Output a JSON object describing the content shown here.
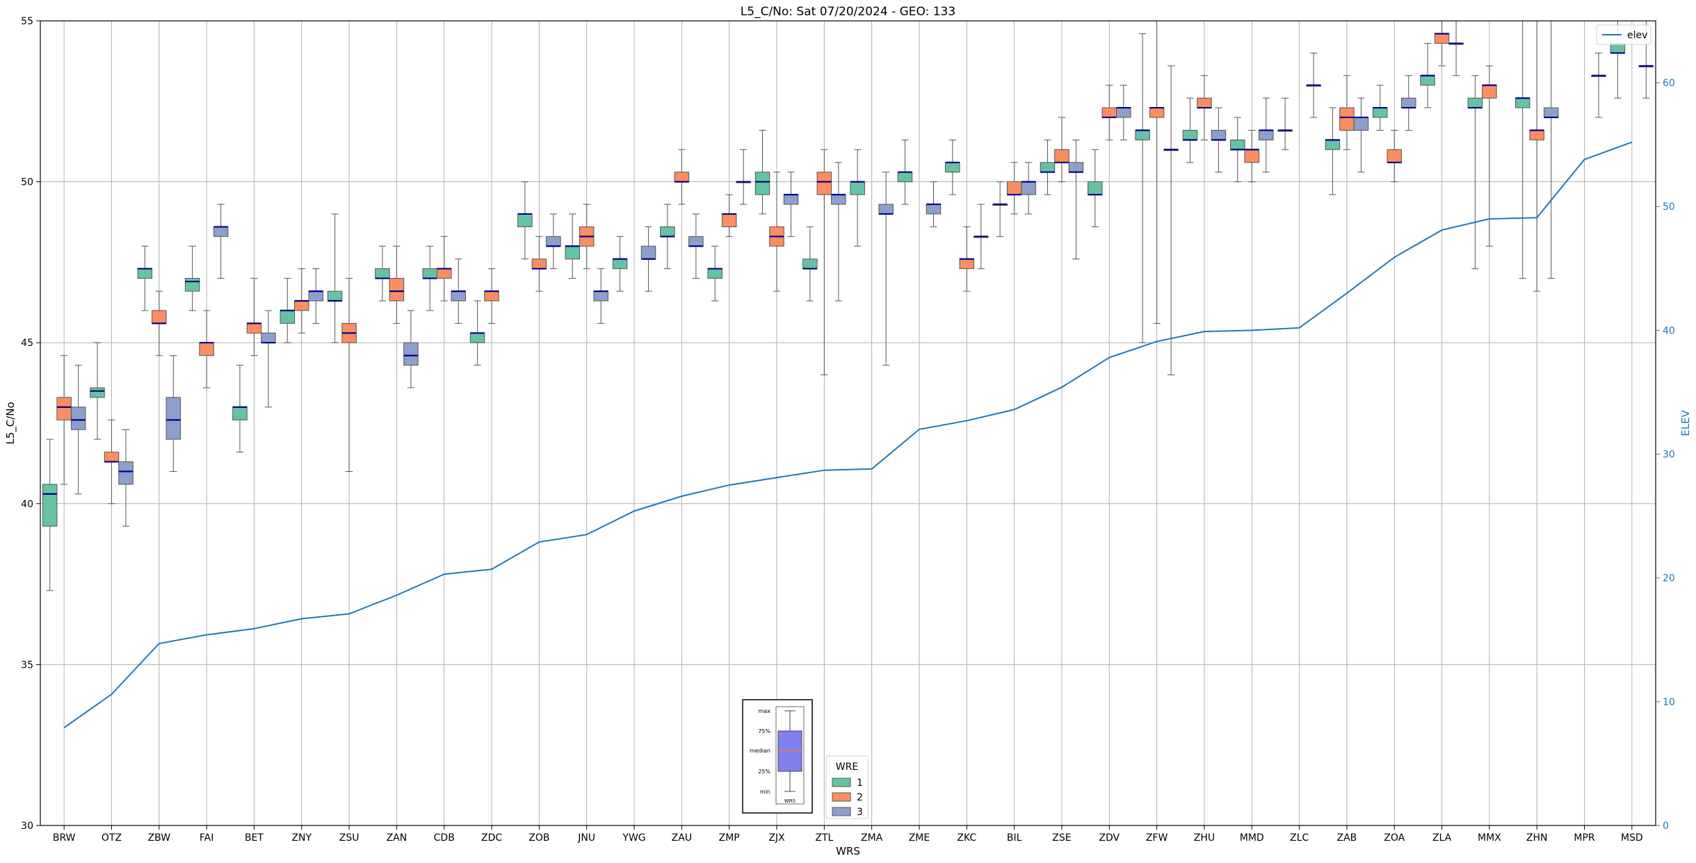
{
  "chart_data": {
    "type": "box",
    "title": "L5_C/No: Sat 07/20/2024 - GEO: 133",
    "xlabel": "WRS",
    "ylabel": "L5_C/No",
    "y2label": "ELEV",
    "ylim": [
      30,
      55
    ],
    "y2lim": [
      0,
      65
    ],
    "yticks": [
      30,
      35,
      40,
      45,
      50,
      55
    ],
    "y2ticks": [
      0,
      10,
      20,
      30,
      40,
      50,
      60
    ],
    "grid": true,
    "categories": [
      "BRW",
      "OTZ",
      "ZBW",
      "FAI",
      "BET",
      "ZNY",
      "ZSU",
      "ZAN",
      "CDB",
      "ZDC",
      "ZOB",
      "JNU",
      "YWG",
      "ZAU",
      "ZMP",
      "ZJX",
      "ZTL",
      "ZMA",
      "ZME",
      "ZKC",
      "BIL",
      "ZSE",
      "ZDV",
      "ZFW",
      "ZHU",
      "MMD",
      "ZLC",
      "ZAB",
      "ZOA",
      "ZLA",
      "MMX",
      "ZHN",
      "MPR",
      "MSD"
    ],
    "series": [
      {
        "name": "1",
        "color": "#66c2a5",
        "boxes": [
          {
            "cat": 0,
            "min": 37.3,
            "q1": 39.3,
            "median": 40.3,
            "q3": 40.6,
            "max": 42.0
          },
          {
            "cat": 1,
            "min": 42.0,
            "q1": 43.3,
            "median": 43.5,
            "q3": 43.6,
            "max": 45.0
          },
          {
            "cat": 2,
            "min": 46.0,
            "q1": 47.0,
            "median": 47.3,
            "q3": 47.3,
            "max": 48.0
          },
          {
            "cat": 3,
            "min": 46.0,
            "q1": 46.6,
            "median": 46.9,
            "q3": 47.0,
            "max": 48.0
          },
          {
            "cat": 4,
            "min": 41.6,
            "q1": 42.6,
            "median": 43.0,
            "q3": 43.0,
            "max": 44.3
          },
          {
            "cat": 5,
            "min": 45.0,
            "q1": 45.6,
            "median": 46.0,
            "q3": 46.0,
            "max": 47.0
          },
          {
            "cat": 6,
            "min": 45.0,
            "q1": 46.3,
            "median": 46.3,
            "q3": 46.6,
            "max": 49.0
          },
          {
            "cat": 7,
            "min": 46.3,
            "q1": 47.0,
            "median": 47.0,
            "q3": 47.3,
            "max": 48.0
          },
          {
            "cat": 8,
            "min": 46.0,
            "q1": 47.0,
            "median": 47.0,
            "q3": 47.3,
            "max": 48.0
          },
          {
            "cat": 9,
            "min": 44.3,
            "q1": 45.0,
            "median": 45.3,
            "q3": 45.3,
            "max": 46.3
          },
          {
            "cat": 10,
            "min": 47.6,
            "q1": 48.6,
            "median": 49.0,
            "q3": 49.0,
            "max": 50.0
          },
          {
            "cat": 11,
            "min": 47.0,
            "q1": 47.6,
            "median": 48.0,
            "q3": 48.0,
            "max": 49.0
          },
          {
            "cat": 12,
            "min": 46.6,
            "q1": 47.3,
            "median": 47.6,
            "q3": 47.6,
            "max": 48.3
          },
          {
            "cat": 13,
            "min": 47.3,
            "q1": 48.3,
            "median": 48.3,
            "q3": 48.6,
            "max": 49.3
          },
          {
            "cat": 14,
            "min": 46.3,
            "q1": 47.0,
            "median": 47.3,
            "q3": 47.3,
            "max": 48.0
          },
          {
            "cat": 15,
            "min": 49.0,
            "q1": 49.6,
            "median": 50.0,
            "q3": 50.3,
            "max": 51.6
          },
          {
            "cat": 16,
            "min": 46.3,
            "q1": 47.3,
            "median": 47.3,
            "q3": 47.6,
            "max": 48.6
          },
          {
            "cat": 17,
            "min": 48.0,
            "q1": 49.6,
            "median": 50.0,
            "q3": 50.0,
            "max": 51.0
          },
          {
            "cat": 18,
            "min": 49.3,
            "q1": 50.0,
            "median": 50.3,
            "q3": 50.3,
            "max": 51.3
          },
          {
            "cat": 19,
            "min": 49.6,
            "q1": 50.3,
            "median": 50.6,
            "q3": 50.6,
            "max": 51.3
          },
          {
            "cat": 20,
            "min": 48.3,
            "q1": 49.3,
            "median": 49.3,
            "q3": 49.3,
            "max": 50.0
          },
          {
            "cat": 21,
            "min": 49.6,
            "q1": 50.3,
            "median": 50.3,
            "q3": 50.6,
            "max": 51.3
          },
          {
            "cat": 22,
            "min": 48.6,
            "q1": 49.6,
            "median": 49.6,
            "q3": 50.0,
            "max": 51.0
          },
          {
            "cat": 23,
            "min": 45.0,
            "q1": 51.3,
            "median": 51.6,
            "q3": 51.6,
            "max": 54.6
          },
          {
            "cat": 24,
            "min": 50.6,
            "q1": 51.3,
            "median": 51.3,
            "q3": 51.6,
            "max": 52.6
          },
          {
            "cat": 25,
            "min": 50.0,
            "q1": 51.0,
            "median": 51.0,
            "q3": 51.3,
            "max": 52.0
          },
          {
            "cat": 26,
            "min": 51.0,
            "q1": 51.6,
            "median": 51.6,
            "q3": 51.6,
            "max": 52.6
          },
          {
            "cat": 27,
            "min": 49.6,
            "q1": 51.0,
            "median": 51.3,
            "q3": 51.3,
            "max": 52.3
          },
          {
            "cat": 28,
            "min": 51.6,
            "q1": 52.0,
            "median": 52.3,
            "q3": 52.3,
            "max": 53.0
          },
          {
            "cat": 29,
            "min": 52.3,
            "q1": 53.0,
            "median": 53.3,
            "q3": 53.3,
            "max": 54.3
          },
          {
            "cat": 30,
            "min": 47.3,
            "q1": 52.3,
            "median": 52.3,
            "q3": 52.6,
            "max": 53.3
          },
          {
            "cat": 31,
            "min": 47.0,
            "q1": 52.3,
            "median": 52.6,
            "q3": 52.6,
            "max": 55.0
          },
          {
            "cat": 33,
            "min": 52.6,
            "q1": 54.0,
            "median": 54.0,
            "q3": 54.3,
            "max": 55.0
          }
        ]
      },
      {
        "name": "2",
        "color": "#fc8d62",
        "boxes": [
          {
            "cat": 0,
            "min": 40.6,
            "q1": 42.6,
            "median": 43.0,
            "q3": 43.3,
            "max": 44.6
          },
          {
            "cat": 1,
            "min": 40.0,
            "q1": 41.3,
            "median": 41.3,
            "q3": 41.6,
            "max": 42.6
          },
          {
            "cat": 2,
            "min": 44.6,
            "q1": 45.6,
            "median": 45.6,
            "q3": 46.0,
            "max": 46.6
          },
          {
            "cat": 3,
            "min": 43.6,
            "q1": 44.6,
            "median": 45.0,
            "q3": 45.0,
            "max": 46.0
          },
          {
            "cat": 4,
            "min": 44.6,
            "q1": 45.3,
            "median": 45.6,
            "q3": 45.6,
            "max": 47.0
          },
          {
            "cat": 5,
            "min": 45.3,
            "q1": 46.0,
            "median": 46.3,
            "q3": 46.3,
            "max": 47.3
          },
          {
            "cat": 6,
            "min": 41.0,
            "q1": 45.0,
            "median": 45.3,
            "q3": 45.6,
            "max": 47.0
          },
          {
            "cat": 7,
            "min": 45.6,
            "q1": 46.3,
            "median": 46.6,
            "q3": 47.0,
            "max": 48.0
          },
          {
            "cat": 8,
            "min": 46.3,
            "q1": 47.0,
            "median": 47.3,
            "q3": 47.3,
            "max": 48.3
          },
          {
            "cat": 9,
            "min": 45.6,
            "q1": 46.3,
            "median": 46.6,
            "q3": 46.6,
            "max": 47.3
          },
          {
            "cat": 10,
            "min": 46.6,
            "q1": 47.3,
            "median": 47.3,
            "q3": 47.6,
            "max": 48.3
          },
          {
            "cat": 11,
            "min": 47.3,
            "q1": 48.0,
            "median": 48.3,
            "q3": 48.6,
            "max": 49.3
          },
          {
            "cat": 13,
            "min": 49.3,
            "q1": 50.0,
            "median": 50.0,
            "q3": 50.3,
            "max": 51.0
          },
          {
            "cat": 14,
            "min": 48.3,
            "q1": 48.6,
            "median": 49.0,
            "q3": 49.0,
            "max": 49.6
          },
          {
            "cat": 15,
            "min": 46.6,
            "q1": 48.0,
            "median": 48.3,
            "q3": 48.6,
            "max": 50.3
          },
          {
            "cat": 16,
            "min": 44.0,
            "q1": 49.6,
            "median": 50.0,
            "q3": 50.3,
            "max": 51.0
          },
          {
            "cat": 19,
            "min": 46.6,
            "q1": 47.3,
            "median": 47.6,
            "q3": 47.6,
            "max": 48.6
          },
          {
            "cat": 20,
            "min": 49.0,
            "q1": 49.6,
            "median": 49.6,
            "q3": 50.0,
            "max": 50.6
          },
          {
            "cat": 21,
            "min": 50.0,
            "q1": 50.6,
            "median": 50.6,
            "q3": 51.0,
            "max": 52.0
          },
          {
            "cat": 22,
            "min": 51.3,
            "q1": 52.0,
            "median": 52.0,
            "q3": 52.3,
            "max": 53.0
          },
          {
            "cat": 23,
            "min": 45.6,
            "q1": 52.0,
            "median": 52.3,
            "q3": 52.3,
            "max": 55.0
          },
          {
            "cat": 24,
            "min": 51.3,
            "q1": 52.3,
            "median": 52.3,
            "q3": 52.6,
            "max": 53.3
          },
          {
            "cat": 25,
            "min": 50.0,
            "q1": 50.6,
            "median": 51.0,
            "q3": 51.0,
            "max": 51.6
          },
          {
            "cat": 27,
            "min": 51.0,
            "q1": 51.6,
            "median": 52.0,
            "q3": 52.3,
            "max": 53.3
          },
          {
            "cat": 28,
            "min": 50.0,
            "q1": 50.6,
            "median": 50.6,
            "q3": 51.0,
            "max": 51.6
          },
          {
            "cat": 29,
            "min": 53.6,
            "q1": 54.3,
            "median": 54.6,
            "q3": 54.6,
            "max": 55.0
          },
          {
            "cat": 30,
            "min": 48.0,
            "q1": 52.6,
            "median": 53.0,
            "q3": 53.0,
            "max": 53.6
          },
          {
            "cat": 31,
            "min": 46.6,
            "q1": 51.3,
            "median": 51.6,
            "q3": 51.6,
            "max": 55.0
          }
        ]
      },
      {
        "name": "3",
        "color": "#8da0cb",
        "boxes": [
          {
            "cat": 0,
            "min": 40.3,
            "q1": 42.3,
            "median": 42.6,
            "q3": 43.0,
            "max": 44.3
          },
          {
            "cat": 1,
            "min": 39.3,
            "q1": 40.6,
            "median": 41.0,
            "q3": 41.3,
            "max": 42.3
          },
          {
            "cat": 2,
            "min": 41.0,
            "q1": 42.0,
            "median": 42.6,
            "q3": 43.3,
            "max": 44.6
          },
          {
            "cat": 3,
            "min": 47.0,
            "q1": 48.3,
            "median": 48.6,
            "q3": 48.6,
            "max": 49.3
          },
          {
            "cat": 4,
            "min": 43.0,
            "q1": 45.0,
            "median": 45.0,
            "q3": 45.3,
            "max": 46.0
          },
          {
            "cat": 5,
            "min": 45.6,
            "q1": 46.3,
            "median": 46.6,
            "q3": 46.6,
            "max": 47.3
          },
          {
            "cat": 7,
            "min": 43.6,
            "q1": 44.3,
            "median": 44.6,
            "q3": 45.0,
            "max": 46.0
          },
          {
            "cat": 8,
            "min": 45.6,
            "q1": 46.3,
            "median": 46.6,
            "q3": 46.6,
            "max": 47.6
          },
          {
            "cat": 10,
            "min": 47.3,
            "q1": 48.0,
            "median": 48.0,
            "q3": 48.3,
            "max": 49.0
          },
          {
            "cat": 11,
            "min": 45.6,
            "q1": 46.3,
            "median": 46.6,
            "q3": 46.6,
            "max": 47.3
          },
          {
            "cat": 12,
            "min": 46.6,
            "q1": 47.6,
            "median": 47.6,
            "q3": 48.0,
            "max": 48.6
          },
          {
            "cat": 13,
            "min": 47.0,
            "q1": 48.0,
            "median": 48.0,
            "q3": 48.3,
            "max": 49.0
          },
          {
            "cat": 14,
            "min": 49.3,
            "q1": 50.0,
            "median": 50.0,
            "q3": 50.0,
            "max": 51.0
          },
          {
            "cat": 15,
            "min": 48.3,
            "q1": 49.3,
            "median": 49.6,
            "q3": 49.6,
            "max": 50.3
          },
          {
            "cat": 16,
            "min": 46.3,
            "q1": 49.3,
            "median": 49.6,
            "q3": 49.6,
            "max": 50.6
          },
          {
            "cat": 17,
            "min": 44.3,
            "q1": 49.0,
            "median": 49.0,
            "q3": 49.3,
            "max": 50.3
          },
          {
            "cat": 18,
            "min": 48.6,
            "q1": 49.0,
            "median": 49.3,
            "q3": 49.3,
            "max": 50.0
          },
          {
            "cat": 19,
            "min": 47.3,
            "q1": 48.3,
            "median": 48.3,
            "q3": 48.3,
            "max": 49.3
          },
          {
            "cat": 20,
            "min": 49.0,
            "q1": 49.6,
            "median": 50.0,
            "q3": 50.0,
            "max": 50.6
          },
          {
            "cat": 21,
            "min": 47.6,
            "q1": 50.3,
            "median": 50.3,
            "q3": 50.6,
            "max": 51.3
          },
          {
            "cat": 22,
            "min": 51.3,
            "q1": 52.0,
            "median": 52.3,
            "q3": 52.3,
            "max": 53.0
          },
          {
            "cat": 23,
            "min": 44.0,
            "q1": 51.0,
            "median": 51.0,
            "q3": 51.0,
            "max": 53.6
          },
          {
            "cat": 24,
            "min": 50.3,
            "q1": 51.3,
            "median": 51.3,
            "q3": 51.6,
            "max": 52.3
          },
          {
            "cat": 25,
            "min": 50.3,
            "q1": 51.3,
            "median": 51.6,
            "q3": 51.6,
            "max": 52.6
          },
          {
            "cat": 26,
            "min": 52.0,
            "q1": 53.0,
            "median": 53.0,
            "q3": 53.0,
            "max": 54.0
          },
          {
            "cat": 27,
            "min": 50.3,
            "q1": 51.6,
            "median": 52.0,
            "q3": 52.0,
            "max": 52.6
          },
          {
            "cat": 28,
            "min": 51.6,
            "q1": 52.3,
            "median": 52.3,
            "q3": 52.6,
            "max": 53.3
          },
          {
            "cat": 29,
            "min": 53.3,
            "q1": 54.3,
            "median": 54.3,
            "q3": 54.3,
            "max": 55.0
          },
          {
            "cat": 31,
            "min": 47.0,
            "q1": 52.0,
            "median": 52.0,
            "q3": 52.3,
            "max": 55.0
          },
          {
            "cat": 32,
            "min": 52.0,
            "q1": 53.3,
            "median": 53.3,
            "q3": 53.3,
            "max": 54.0
          },
          {
            "cat": 33,
            "min": 52.6,
            "q1": 53.6,
            "median": 53.6,
            "q3": 53.6,
            "max": 55.0
          }
        ]
      }
    ],
    "line_series": {
      "name": "elev",
      "axis": "right",
      "color": "#1f77b4",
      "values": [
        7.9,
        10.6,
        14.7,
        15.4,
        15.9,
        16.7,
        17.1,
        18.6,
        20.3,
        20.7,
        22.9,
        23.5,
        25.4,
        26.6,
        27.5,
        28.1,
        28.7,
        28.8,
        32.0,
        32.7,
        33.6,
        35.4,
        37.8,
        39.1,
        39.9,
        40.0,
        40.2,
        43.0,
        45.9,
        48.1,
        49.0,
        49.1,
        53.8,
        55.2
      ]
    },
    "legend": {
      "title": "WRE",
      "entries": [
        "1",
        "2",
        "3"
      ],
      "placement": "bottom-center"
    },
    "line_legend": {
      "label": "elev",
      "placement": "top-right"
    },
    "inset": {
      "labels": [
        "max",
        "75%",
        "median",
        "25%",
        "min"
      ],
      "caption": "WRS",
      "box_color": "#8080f0",
      "median_color": "#ff7f0e"
    }
  }
}
